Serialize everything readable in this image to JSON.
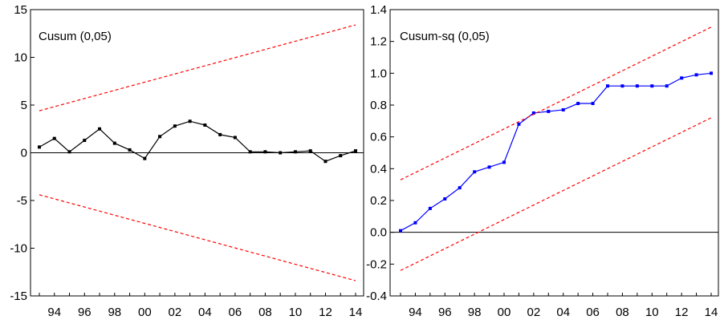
{
  "chart_data": [
    {
      "type": "line",
      "title": "Cusum (0,05)",
      "xlabel": "",
      "ylabel": "",
      "x": [
        1993,
        1994,
        1995,
        1996,
        1997,
        1998,
        1999,
        2000,
        2001,
        2002,
        2003,
        2004,
        2005,
        2006,
        2007,
        2008,
        2009,
        2010,
        2011,
        2012,
        2013,
        2014
      ],
      "series": [
        {
          "values": [
            0.6,
            1.5,
            0.1,
            1.3,
            2.5,
            1.0,
            0.3,
            -0.6,
            1.7,
            2.8,
            3.3,
            2.9,
            1.9,
            1.6,
            0.1,
            0.1,
            0.0,
            0.1,
            0.2,
            -0.9,
            -0.3,
            0.2
          ],
          "color": "#000000",
          "style": "solid-markers"
        },
        {
          "values_endpoints": [
            [
              1993,
              4.4
            ],
            [
              2014,
              13.4
            ]
          ],
          "color": "#ff0000",
          "style": "dashed"
        },
        {
          "values_endpoints": [
            [
              1993,
              -4.4
            ],
            [
              2014,
              -13.4
            ]
          ],
          "color": "#ff0000",
          "style": "dashed"
        }
      ],
      "ylim": [
        -15,
        15
      ],
      "yticks": [
        "-15",
        "-10",
        "-5",
        "0",
        "5",
        "10",
        "15"
      ],
      "xtick_labels": [
        "94",
        "96",
        "98",
        "00",
        "02",
        "04",
        "06",
        "08",
        "10",
        "12",
        "14"
      ],
      "zero_line": true
    },
    {
      "type": "line",
      "title": "Cusum-sq (0,05)",
      "xlabel": "",
      "ylabel": "",
      "x": [
        1993,
        1994,
        1995,
        1996,
        1997,
        1998,
        1999,
        2000,
        2001,
        2002,
        2003,
        2004,
        2005,
        2006,
        2007,
        2008,
        2009,
        2010,
        2011,
        2012,
        2013,
        2014
      ],
      "series": [
        {
          "values": [
            0.01,
            0.06,
            0.15,
            0.21,
            0.28,
            0.38,
            0.41,
            0.44,
            0.68,
            0.75,
            0.76,
            0.77,
            0.81,
            0.81,
            0.92,
            0.92,
            0.92,
            0.92,
            0.92,
            0.97,
            0.99,
            1.0
          ],
          "color": "#0000ff",
          "style": "solid-markers"
        },
        {
          "values_endpoints": [
            [
              1993,
              0.33
            ],
            [
              2014,
              1.29
            ]
          ],
          "color": "#ff0000",
          "style": "dashed"
        },
        {
          "values_endpoints": [
            [
              1993,
              -0.24
            ],
            [
              2014,
              0.72
            ]
          ],
          "color": "#ff0000",
          "style": "dashed"
        }
      ],
      "ylim": [
        -0.4,
        1.4
      ],
      "yticks": [
        "-0.4",
        "-0.2",
        "0.0",
        "0.2",
        "0.4",
        "0.6",
        "0.8",
        "1.0",
        "1.2",
        "1.4"
      ],
      "xtick_labels": [
        "94",
        "96",
        "98",
        "00",
        "02",
        "04",
        "06",
        "08",
        "10",
        "12",
        "14"
      ],
      "zero_line": true
    }
  ]
}
